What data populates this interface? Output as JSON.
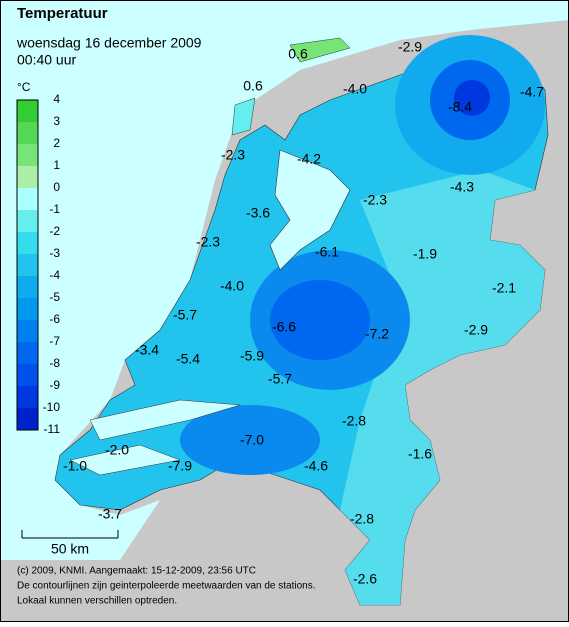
{
  "header": {
    "title": "Temperatuur",
    "subtitle": "woensdag 16 december 2009",
    "time": "00:40 uur"
  },
  "legend": {
    "unit": "°C",
    "ticks": [
      4,
      3,
      2,
      1,
      0,
      -1,
      -2,
      -3,
      -4,
      -5,
      -6,
      -7,
      -8,
      -9,
      -10,
      -11
    ],
    "colors": [
      "#33cc33",
      "#55d855",
      "#77e477",
      "#aaeeaa",
      "#aaffff",
      "#66eeee",
      "#33ddee",
      "#22c4ee",
      "#11aaee",
      "#0099ee",
      "#0080ee",
      "#0068ee",
      "#0050ee",
      "#0038e0",
      "#0022cc"
    ]
  },
  "map_labels": [
    "0.6",
    "-2.9",
    "0.6",
    "-4.0",
    "-8.4",
    "-4.7",
    "-2.3",
    "-4.2",
    "-4.3",
    "-3.6",
    "-2.3",
    "-2.3",
    "-6.1",
    "-1.9",
    "-4.0",
    "-2.1",
    "-5.7",
    "-6.6",
    "-7.2",
    "-2.9",
    "-3.4",
    "-5.4",
    "-5.9",
    "-5.7",
    "-2.8",
    "-2.0",
    "-7.0",
    "-1.6",
    "-1.0",
    "-7.9",
    "-4.6",
    "-3.7",
    "-2.8",
    "-2.6"
  ],
  "scale": "50 km",
  "footer": [
    "(c) 2009, KNMI. Aangemaakt: 15-12-2009, 23:56 UTC",
    "De contourlijnen zijn geinterpoleerde meetwaarden van de stations.",
    "Lokaal kunnen verschillen optreden."
  ]
}
